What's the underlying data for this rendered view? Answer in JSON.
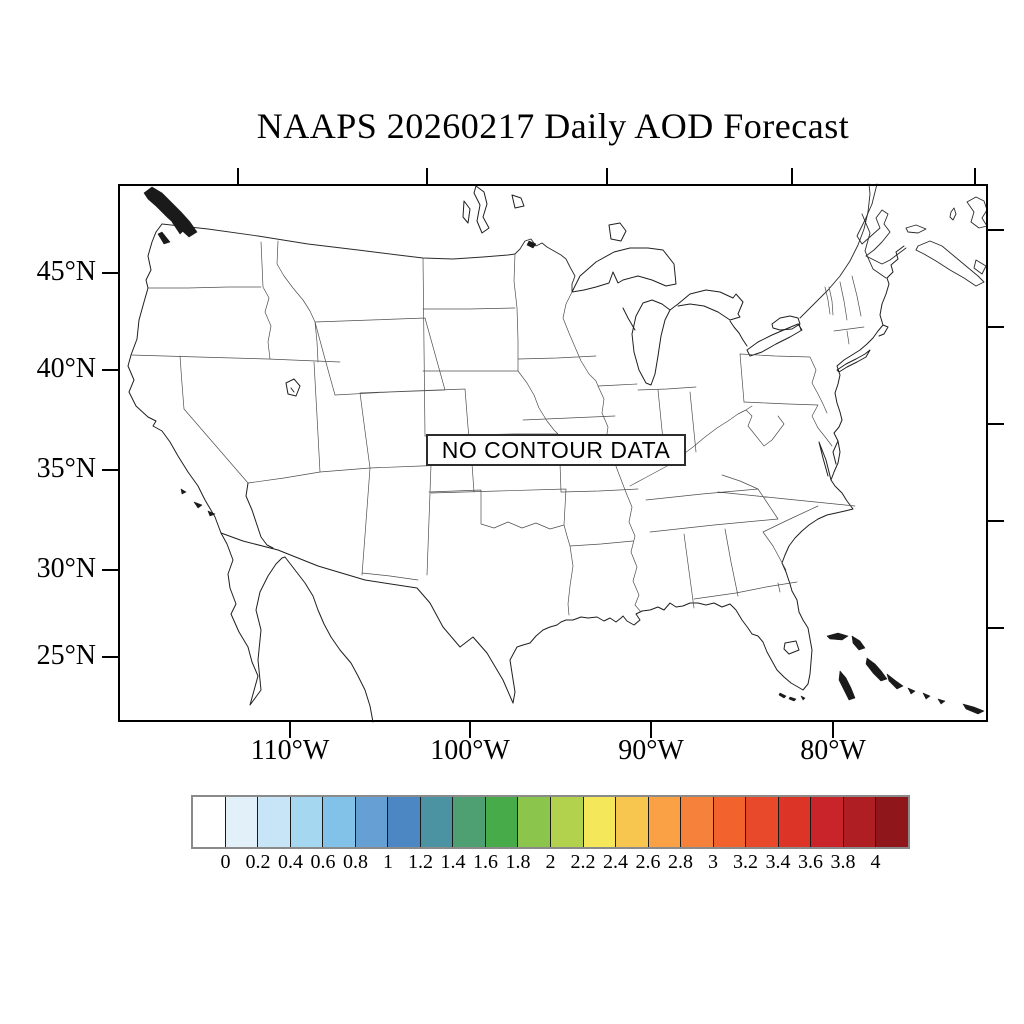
{
  "title": "NAAPS 20260217 Daily AOD Forecast",
  "map": {
    "no_data_label": "NO CONTOUR DATA",
    "lat_tick_labels": [
      "45°N",
      "40°N",
      "35°N",
      "30°N",
      "25°N"
    ],
    "lon_tick_labels": [
      "110°W",
      "100°W",
      "90°W",
      "80°W"
    ]
  },
  "colorbar": {
    "min": 0,
    "max": 4,
    "tick_labels": [
      "0",
      "0.2",
      "0.4",
      "0.6",
      "0.8",
      "1",
      "1.2",
      "1.4",
      "1.6",
      "1.8",
      "2",
      "2.2",
      "2.4",
      "2.6",
      "2.8",
      "3",
      "3.2",
      "3.4",
      "3.6",
      "3.8",
      "4"
    ],
    "colors": [
      "#FFFFFF",
      "#E2F0FA",
      "#C7E5F6",
      "#A5D7F1",
      "#82C2E8",
      "#659FD4",
      "#4C86C3",
      "#4B93A3",
      "#4E9F72",
      "#47AB49",
      "#8BC54B",
      "#B2D14C",
      "#F4E75A",
      "#F7C64F",
      "#F9A144",
      "#F5813A",
      "#F2622D",
      "#E8492B",
      "#DC3426",
      "#C92429",
      "#AE1E23",
      "#8F161B"
    ]
  },
  "colors": {
    "frame": "#000000",
    "coast_line": "#1f1f1f",
    "state_line": "#555555",
    "label_text": "#000000"
  }
}
